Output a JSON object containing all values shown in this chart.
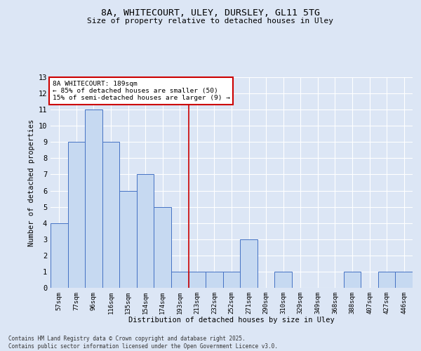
{
  "title_line1": "8A, WHITECOURT, ULEY, DURSLEY, GL11 5TG",
  "title_line2": "Size of property relative to detached houses in Uley",
  "xlabel": "Distribution of detached houses by size in Uley",
  "ylabel": "Number of detached properties",
  "categories": [
    "57sqm",
    "77sqm",
    "96sqm",
    "116sqm",
    "135sqm",
    "154sqm",
    "174sqm",
    "193sqm",
    "213sqm",
    "232sqm",
    "252sqm",
    "271sqm",
    "290sqm",
    "310sqm",
    "329sqm",
    "349sqm",
    "368sqm",
    "388sqm",
    "407sqm",
    "427sqm",
    "446sqm"
  ],
  "values": [
    4,
    9,
    11,
    9,
    6,
    7,
    5,
    1,
    1,
    1,
    1,
    3,
    0,
    1,
    0,
    0,
    0,
    1,
    0,
    1,
    1
  ],
  "bar_color": "#c6d9f1",
  "bar_edge_color": "#4472c4",
  "vline_x_index": 7,
  "vline_color": "#cc0000",
  "annotation_text": "8A WHITECOURT: 189sqm\n← 85% of detached houses are smaller (50)\n15% of semi-detached houses are larger (9) →",
  "annotation_box_color": "#ffffff",
  "annotation_box_edge": "#cc0000",
  "ylim": [
    0,
    13
  ],
  "yticks": [
    0,
    1,
    2,
    3,
    4,
    5,
    6,
    7,
    8,
    9,
    10,
    11,
    12,
    13
  ],
  "background_color": "#dce6f5",
  "grid_color": "#ffffff",
  "footer": "Contains HM Land Registry data © Crown copyright and database right 2025.\nContains public sector information licensed under the Open Government Licence v3.0."
}
